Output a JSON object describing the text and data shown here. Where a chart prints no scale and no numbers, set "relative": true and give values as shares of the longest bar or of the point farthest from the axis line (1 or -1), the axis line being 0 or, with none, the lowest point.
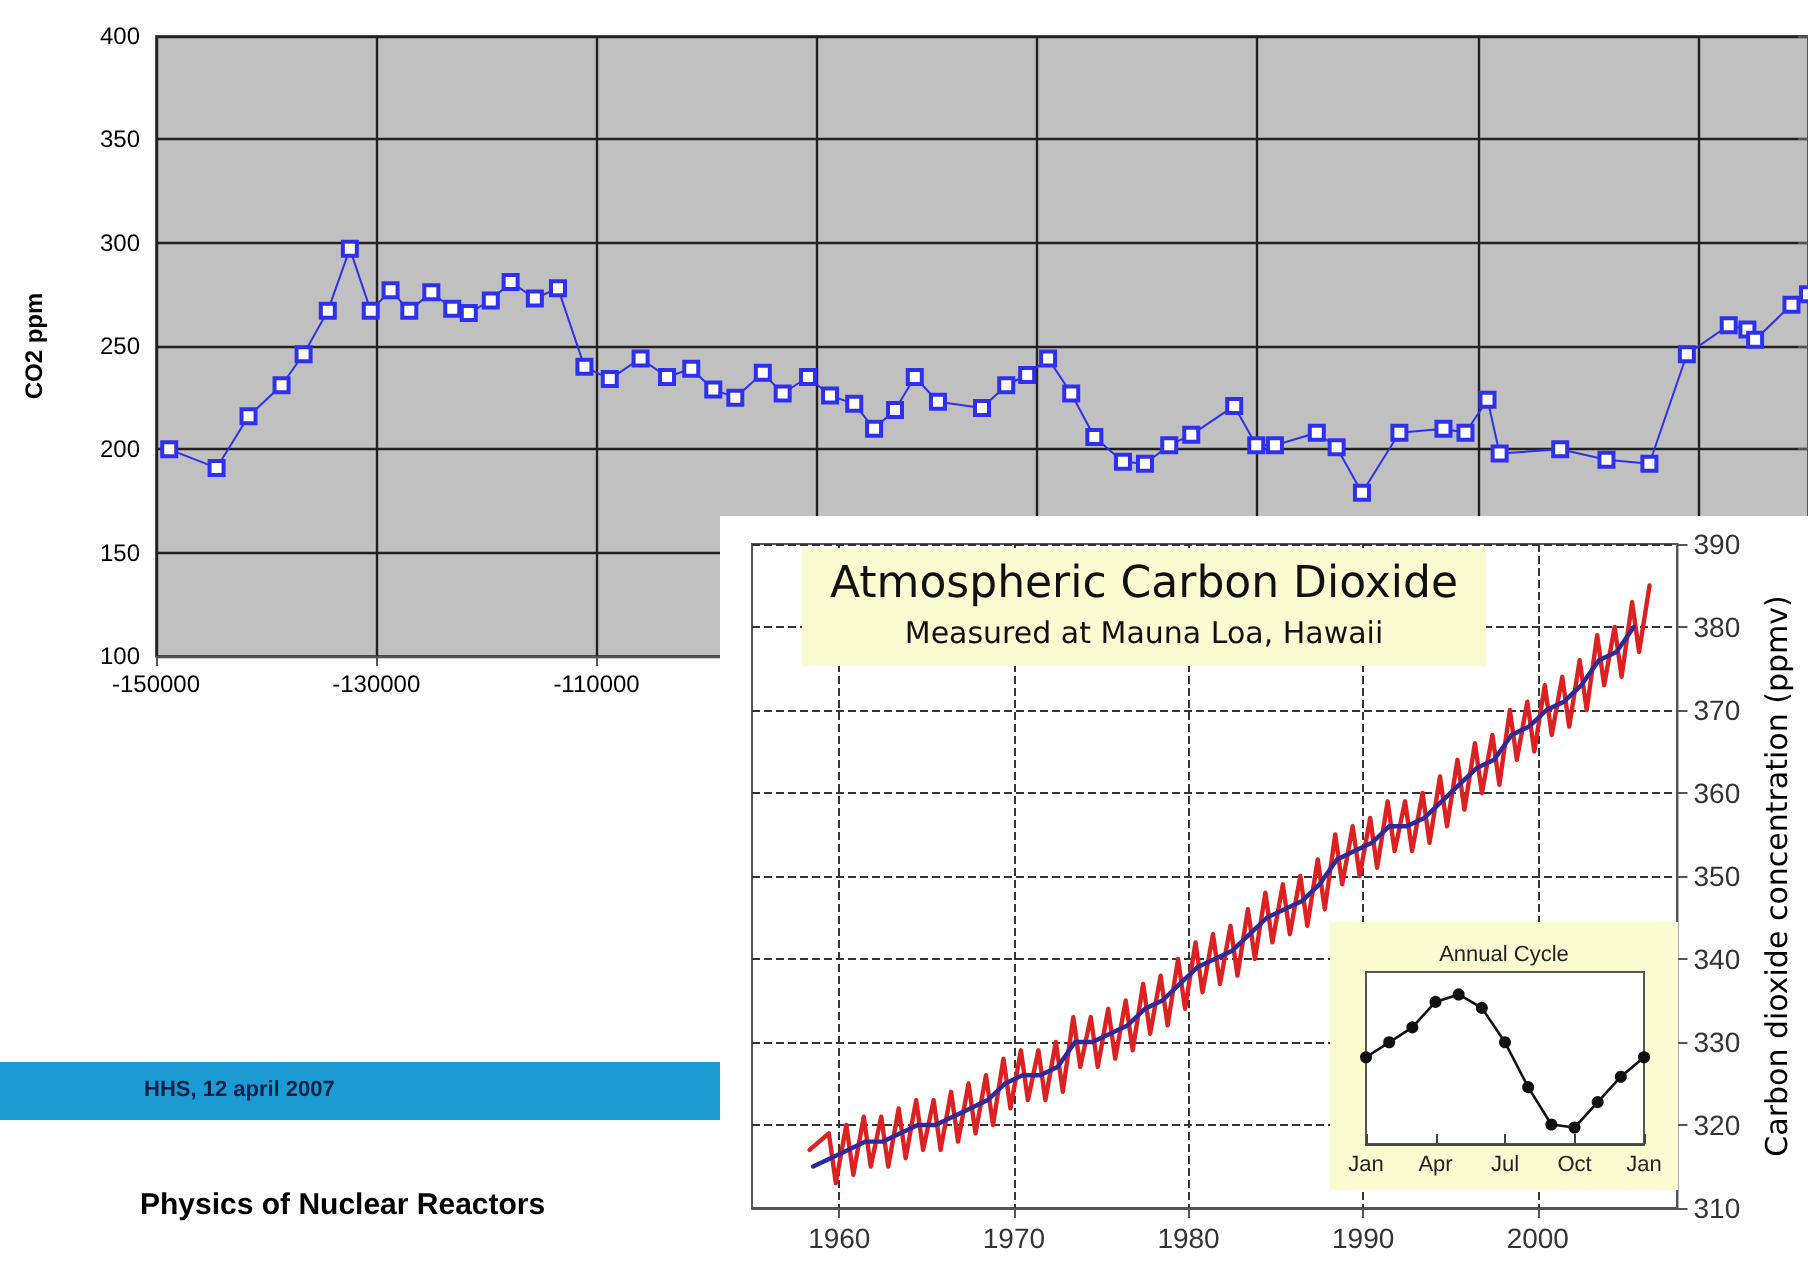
{
  "chart_data": [
    {
      "type": "line",
      "ylabel": "CO2 ppm",
      "color": "#2f2ff0",
      "marker": "square",
      "grid": true,
      "xlim": [
        -150000,
        0
      ],
      "ylim": [
        100,
        400
      ],
      "xticks": [
        -150000,
        -130000,
        -110000,
        {
          "value": -90000,
          "label": null
        },
        {
          "value": -70000,
          "label": null
        },
        {
          "value": -50000,
          "label": null
        },
        {
          "value": -30000,
          "label": null
        },
        {
          "value": -10000,
          "label": null
        }
      ],
      "yticks": [
        100,
        150,
        200,
        250,
        300,
        350,
        400
      ],
      "x": [
        -148800,
        -144500,
        -141600,
        -138600,
        -136600,
        -134400,
        -132400,
        -130500,
        -128700,
        -127000,
        -125000,
        -123100,
        -121600,
        -119600,
        -117800,
        -115600,
        -113500,
        -111100,
        -108800,
        -106000,
        -103600,
        -101400,
        -99400,
        -97400,
        -94900,
        -93100,
        -90800,
        -88800,
        -86600,
        -84800,
        -82900,
        -81100,
        -79000,
        -75000,
        -72800,
        -70900,
        -69000,
        -66900,
        -64800,
        -62200,
        -60200,
        -58000,
        -56000,
        -52100,
        -50100,
        -48400,
        -44600,
        -42800,
        -40500,
        -37100,
        -33100,
        -31100,
        -29100,
        -28000,
        -22500,
        -18300,
        -14400,
        -11000,
        -7200,
        -5500,
        -4800,
        -1500,
        0
      ],
      "values": [
        200,
        191,
        216,
        231,
        246,
        267,
        297,
        267,
        277,
        267,
        276,
        268,
        266,
        272,
        281,
        273,
        278,
        240,
        234,
        244,
        235,
        239,
        229,
        225,
        237,
        227,
        235,
        226,
        222,
        210,
        219,
        235,
        223,
        220,
        231,
        236,
        244,
        227,
        206,
        194,
        193,
        202,
        207,
        221,
        202,
        202,
        208,
        201,
        179,
        208,
        210,
        208,
        224,
        198,
        200,
        195,
        193,
        246,
        260,
        258,
        253,
        270,
        275
      ],
      "annotations": [
        "HHS, 12 april 2007",
        "Physics of Nuclear Reactors"
      ]
    },
    {
      "type": "line",
      "title": "Atmospheric Carbon Dioxide",
      "subtitle": "Measured at Mauna Loa, Hawaii",
      "ylabel": "Carbon dioxide concentration (ppmv)",
      "marker": "none",
      "grid": true,
      "xlim": [
        1955,
        2008
      ],
      "ylim": [
        310,
        390
      ],
      "xticks": [
        1960,
        1970,
        1980,
        1990,
        2000
      ],
      "yticks": [
        310,
        320,
        330,
        340,
        350,
        360,
        370,
        380,
        390
      ],
      "series": [
        {
          "color": "#dd2020",
          "x": [
            1958.3,
            1959.4,
            1959.8,
            1960.4,
            1960.8,
            1961.4,
            1961.8,
            1962.4,
            1962.8,
            1963.4,
            1963.8,
            1964.4,
            1964.8,
            1965.4,
            1965.8,
            1966.4,
            1966.8,
            1967.4,
            1967.8,
            1968.4,
            1968.8,
            1969.4,
            1969.8,
            1970.4,
            1970.8,
            1971.4,
            1971.8,
            1972.4,
            1972.8,
            1973.4,
            1973.8,
            1974.4,
            1974.8,
            1975.4,
            1975.8,
            1976.4,
            1976.8,
            1977.4,
            1977.8,
            1978.4,
            1978.8,
            1979.4,
            1979.8,
            1980.4,
            1980.8,
            1981.4,
            1981.8,
            1982.4,
            1982.8,
            1983.4,
            1983.8,
            1984.4,
            1984.8,
            1985.4,
            1985.8,
            1986.4,
            1986.8,
            1987.4,
            1987.8,
            1988.4,
            1988.8,
            1989.4,
            1989.8,
            1990.4,
            1990.8,
            1991.4,
            1991.8,
            1992.4,
            1992.8,
            1993.4,
            1993.8,
            1994.4,
            1994.8,
            1995.4,
            1995.8,
            1996.4,
            1996.8,
            1997.4,
            1997.8,
            1998.4,
            1998.8,
            1999.4,
            1999.8,
            2000.4,
            2000.8,
            2001.4,
            2001.8,
            2002.4,
            2002.8,
            2003.4,
            2003.8,
            2004.4,
            2004.8,
            2005.4,
            2005.8,
            2006.4
          ],
          "values": [
            317,
            319,
            313,
            320,
            314,
            321,
            315,
            321,
            315,
            322,
            316,
            323,
            317,
            323,
            317,
            324,
            318,
            325,
            319,
            326,
            320,
            328,
            322,
            329,
            323,
            329,
            323,
            330,
            324,
            333,
            327,
            333,
            327,
            334,
            328,
            335,
            329,
            337,
            331,
            338,
            332,
            340,
            334,
            342,
            336,
            343,
            337,
            344,
            338,
            346,
            340,
            348,
            342,
            349,
            343,
            350,
            344,
            352,
            346,
            355,
            349,
            356,
            350,
            357,
            351,
            359,
            353,
            359,
            353,
            360,
            354,
            362,
            356,
            364,
            358,
            366,
            360,
            367,
            361,
            370,
            364,
            371,
            365,
            373,
            367,
            374,
            368,
            376,
            370,
            379,
            373,
            380,
            374,
            383,
            377,
            385
          ]
        },
        {
          "color": "#2e2a9a",
          "x": [
            1958.5,
            1959.5,
            1960.5,
            1961.5,
            1962.5,
            1963.5,
            1964.5,
            1965.5,
            1966.5,
            1967.5,
            1968.5,
            1969.5,
            1970.5,
            1971.5,
            1972.5,
            1973.5,
            1974.5,
            1975.5,
            1976.5,
            1977.5,
            1978.5,
            1979.5,
            1980.5,
            1981.5,
            1982.5,
            1983.5,
            1984.5,
            1985.5,
            1986.5,
            1987.5,
            1988.5,
            1989.5,
            1990.5,
            1991.5,
            1992.5,
            1993.5,
            1994.5,
            1995.5,
            1996.5,
            1997.5,
            1998.5,
            1999.5,
            2000.5,
            2001.5,
            2002.5,
            2003.5,
            2004.5,
            2005.5
          ],
          "values": [
            315,
            316,
            317,
            318,
            318,
            319,
            320,
            320,
            321,
            322,
            323,
            325,
            326,
            326,
            327,
            330,
            330,
            331,
            332,
            334,
            335,
            337,
            339,
            340,
            341,
            343,
            345,
            346,
            347,
            349,
            352,
            353,
            354,
            356,
            356,
            357,
            359,
            361,
            363,
            364,
            367,
            368,
            370,
            371,
            373,
            376,
            377,
            380
          ]
        }
      ]
    },
    {
      "type": "line",
      "title": "Annual Cycle",
      "relative": true,
      "color": "#111111",
      "marker": "circle",
      "categories": [
        "Jan",
        null,
        null,
        "Apr",
        null,
        null,
        "Jul",
        null,
        null,
        "Oct",
        null,
        null,
        "Jan"
      ],
      "values": [
        0.58,
        0.68,
        0.78,
        0.95,
        1,
        0.91,
        0.68,
        0.38,
        0.13,
        0.11,
        0.28,
        0.45,
        0.58
      ]
    }
  ]
}
